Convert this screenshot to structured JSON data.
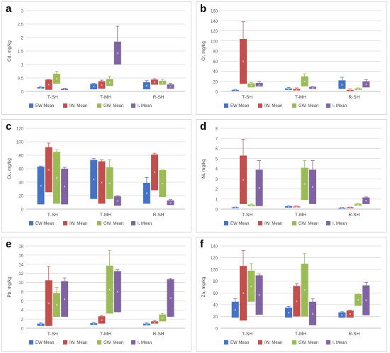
{
  "colors": {
    "EW Mean": "#4472c4",
    "IW. Mean": "#c0504d",
    "GW. Mean": "#9bbb59",
    "I. Mean": "#8064a2"
  },
  "chart_data": [
    {
      "type": "box",
      "panel_label": "a",
      "ylabel": "Cd, mg/kg",
      "categories": [
        "T-SH",
        "T-MH",
        "R-SH"
      ],
      "ylim": [
        0,
        3
      ],
      "yticks": [
        0,
        0.5,
        1,
        1.5,
        2,
        2.5,
        3
      ],
      "yticklabels": [
        "0",
        "0.5",
        "1",
        "1.5",
        "2",
        "2.5",
        "3"
      ],
      "legend_position": "bottom",
      "series": [
        {
          "name": "EW Mean",
          "boxes": [
            [
              0.11,
              0.16,
              0.18
            ],
            [
              0.08,
              0.28,
              0.3
            ],
            [
              0.08,
              0.34,
              0.4
            ]
          ]
        },
        {
          "name": "IW. Mean",
          "boxes": [
            [
              0.06,
              0.44,
              0.44
            ],
            [
              0.1,
              0.38,
              0.42
            ],
            [
              0.25,
              0.44,
              0.47
            ]
          ]
        },
        {
          "name": "GW. Mean",
          "boxes": [
            [
              0.29,
              0.66,
              0.75
            ],
            [
              0.2,
              0.46,
              0.56
            ],
            [
              0.25,
              0.4,
              0.45
            ]
          ]
        },
        {
          "name": "I. Mean",
          "boxes": [
            [
              0.05,
              0.1,
              0.12
            ],
            [
              1.0,
              1.85,
              2.42
            ],
            [
              0.1,
              0.26,
              0.3
            ]
          ]
        }
      ]
    },
    {
      "type": "box",
      "panel_label": "b",
      "ylabel": "Cr, mg/kg",
      "categories": [
        "T-SH",
        "T-MH",
        "R-SH"
      ],
      "ylim": [
        0,
        160
      ],
      "yticks": [
        0,
        20,
        40,
        60,
        80,
        100,
        120,
        140,
        160
      ],
      "yticklabels": [
        "0",
        "20",
        "40",
        "60",
        "80",
        "100",
        "120",
        "140",
        "160"
      ],
      "legend_position": "bottom",
      "series": [
        {
          "name": "EW Mean",
          "boxes": [
            [
              1,
              3,
              4
            ],
            [
              3,
              6,
              8
            ],
            [
              5,
              22,
              28
            ]
          ]
        },
        {
          "name": "IW. Mean",
          "boxes": [
            [
              15,
              104,
              138
            ],
            [
              2,
              5,
              7
            ],
            [
              1,
              3,
              5
            ]
          ]
        },
        {
          "name": "GW. Mean",
          "boxes": [
            [
              8,
              16,
              18
            ],
            [
              10,
              30,
              35
            ],
            [
              3,
              6,
              7
            ]
          ]
        },
        {
          "name": "I. Mean",
          "boxes": [
            [
              10,
              17,
              20
            ],
            [
              5,
              9,
              10
            ],
            [
              8,
              20,
              23
            ]
          ]
        }
      ]
    },
    {
      "type": "box",
      "panel_label": "c",
      "ylabel": "Cu, mg/kg",
      "categories": [
        "T-SH",
        "T-MH",
        "R-SH"
      ],
      "ylim": [
        0,
        120
      ],
      "yticks": [
        0,
        20,
        40,
        60,
        80,
        100,
        120
      ],
      "yticklabels": [
        "0",
        "20",
        "40",
        "60",
        "80",
        "100",
        "120"
      ],
      "legend_position": "bottom",
      "series": [
        {
          "name": "EW Mean",
          "boxes": [
            [
              7,
              63,
              64
            ],
            [
              15,
              73,
              75
            ],
            [
              8,
              39,
              47
            ]
          ]
        },
        {
          "name": "IW. Mean",
          "boxes": [
            [
              25,
              92,
              98
            ],
            [
              8,
              71,
              73
            ],
            [
              28,
              81,
              83
            ]
          ]
        },
        {
          "name": "GW. Mean",
          "boxes": [
            [
              8,
              85,
              88
            ],
            [
              15,
              62,
              73
            ],
            [
              18,
              58,
              58
            ]
          ]
        },
        {
          "name": "I. Mean",
          "boxes": [
            [
              7,
              60,
              62
            ],
            [
              5,
              19,
              20
            ],
            [
              6,
              13,
              14
            ]
          ]
        }
      ]
    },
    {
      "type": "box",
      "panel_label": "d",
      "ylabel": "Ni, mg/kg",
      "categories": [
        "T-SH",
        "T-MH",
        "R-SH"
      ],
      "ylim": [
        0,
        8
      ],
      "yticks": [
        0,
        1,
        2,
        3,
        4,
        5,
        6,
        7,
        8
      ],
      "yticklabels": [
        "0",
        "1",
        "2",
        "3",
        "4",
        "5",
        "6",
        "7",
        "8"
      ],
      "legend_position": "bottom",
      "series": [
        {
          "name": "EW Mean",
          "boxes": [
            [
              0.1,
              0.18,
              0.2
            ],
            [
              0.15,
              0.28,
              0.32
            ],
            [
              0.08,
              0.14,
              0.16
            ]
          ]
        },
        {
          "name": "IW. Mean",
          "boxes": [
            [
              0.5,
              5.3,
              6.9
            ],
            [
              0.18,
              0.26,
              0.3
            ],
            [
              0.1,
              0.18,
              0.2
            ]
          ]
        },
        {
          "name": "GW. Mean",
          "boxes": [
            [
              0.3,
              0.45,
              0.5
            ],
            [
              0.9,
              4.1,
              4.8
            ],
            [
              0.35,
              0.52,
              0.55
            ]
          ]
        },
        {
          "name": "I. Mean",
          "boxes": [
            [
              0.3,
              3.9,
              4.8
            ],
            [
              0.5,
              3.9,
              4.8
            ],
            [
              0.5,
              1.15,
              1.2
            ]
          ]
        }
      ]
    },
    {
      "type": "box",
      "panel_label": "e",
      "ylabel": "Pb, mg/kg",
      "categories": [
        "T-SH",
        "T-MH",
        "R-SH"
      ],
      "ylim": [
        0,
        18
      ],
      "yticks": [
        0,
        2,
        4,
        6,
        8,
        10,
        12,
        14,
        16,
        18
      ],
      "yticklabels": [
        "0",
        "2",
        "4",
        "6",
        "8",
        "10",
        "12",
        "14",
        "16",
        "18"
      ],
      "legend_position": "bottom",
      "series": [
        {
          "name": "EW Mean",
          "boxes": [
            [
              0.5,
              1.0,
              1.2
            ],
            [
              0.7,
              1.1,
              1.3
            ],
            [
              0.6,
              1.0,
              1.2
            ]
          ]
        },
        {
          "name": "IW. Mean",
          "boxes": [
            [
              0.5,
              10.5,
              13.5
            ],
            [
              1.0,
              2.6,
              2.8
            ],
            [
              1.0,
              1.5,
              1.6
            ]
          ]
        },
        {
          "name": "GW. Mean",
          "boxes": [
            [
              2.5,
              7.7,
              8.9
            ],
            [
              3.2,
              13.7,
              17.0
            ],
            [
              1.5,
              3.0,
              3.2
            ]
          ]
        },
        {
          "name": "I. Mean",
          "boxes": [
            [
              2.5,
              10.3,
              11.0
            ],
            [
              3.5,
              12.5,
              12.8
            ],
            [
              2.5,
              10.7,
              10.9
            ]
          ]
        }
      ]
    },
    {
      "type": "box",
      "panel_label": "f",
      "ylabel": "Zn, mg/kg",
      "categories": [
        "T-SH",
        "T-MH",
        "R-SH"
      ],
      "ylim": [
        0,
        140
      ],
      "yticks": [
        0,
        20,
        40,
        60,
        80,
        100,
        120,
        140
      ],
      "yticklabels": [
        "0",
        "20",
        "40",
        "60",
        "80",
        "100",
        "120",
        "140"
      ],
      "legend_position": "bottom",
      "series": [
        {
          "name": "EW Mean",
          "boxes": [
            [
              18,
              45,
              50
            ],
            [
              18,
              35,
              37
            ],
            [
              18,
              27,
              28
            ]
          ]
        },
        {
          "name": "IW. Mean",
          "boxes": [
            [
              13,
              106,
              132
            ],
            [
              20,
              72,
              76
            ],
            [
              18,
              30,
              31
            ]
          ]
        },
        {
          "name": "GW. Mean",
          "boxes": [
            [
              45,
              98,
              110
            ],
            [
              20,
              110,
              127
            ],
            [
              38,
              58,
              58
            ]
          ]
        },
        {
          "name": "I. Mean",
          "boxes": [
            [
              23,
              90,
              92
            ],
            [
              5,
              45,
              50
            ],
            [
              22,
              73,
              78
            ]
          ]
        }
      ]
    }
  ]
}
